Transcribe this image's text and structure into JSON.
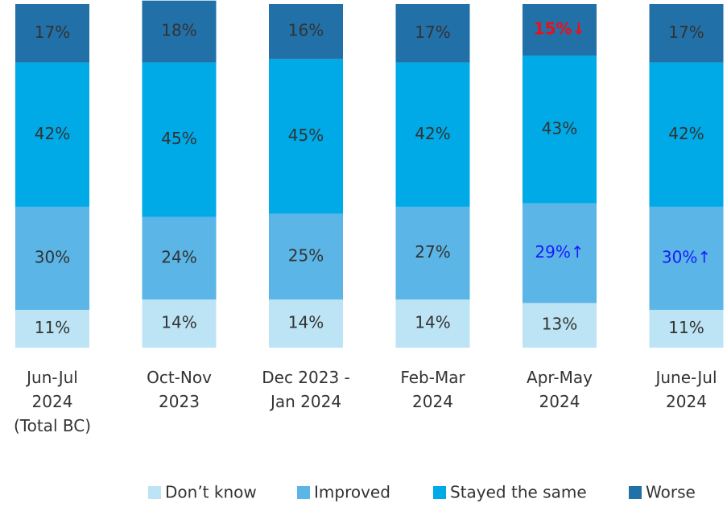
{
  "chart_data": {
    "type": "stacked_bar",
    "categories": [
      "Jun-Jul\n2024\n(Total BC)",
      "Oct-Nov\n2023",
      "Dec 2023 -\nJan 2024",
      "Feb-Mar\n2024",
      "Apr-May\n2024",
      "June-Jul\n2024"
    ],
    "series": [
      {
        "name": "Don’t know",
        "color": "#bde4f5",
        "values": [
          11,
          14,
          14,
          14,
          13,
          11
        ],
        "value_labels": [
          "11%",
          "14%",
          "14%",
          "14%",
          "13%",
          "11%"
        ]
      },
      {
        "name": "Improved",
        "color": "#5bb5e6",
        "values": [
          30,
          24,
          25,
          27,
          29,
          30
        ],
        "value_labels": [
          "30%",
          "24%",
          "25%",
          "27%",
          "29%↑",
          "30%↑"
        ]
      },
      {
        "name": "Stayed the same",
        "color": "#00aae7",
        "values": [
          42,
          45,
          45,
          42,
          43,
          42
        ],
        "value_labels": [
          "42%",
          "45%",
          "45%",
          "42%",
          "43%",
          "42%"
        ]
      },
      {
        "name": "Worse",
        "color": "#2270a8",
        "values": [
          17,
          18,
          16,
          17,
          15,
          17
        ],
        "value_labels": [
          "17%",
          "18%",
          "16%",
          "17%",
          "15%↓",
          "17%"
        ]
      }
    ],
    "highlights": [
      {
        "series": 3,
        "index": 4,
        "color": "#e8111b",
        "bold": true
      },
      {
        "series": 1,
        "index": 4,
        "color": "#1a1aff",
        "bold": false
      },
      {
        "series": 1,
        "index": 5,
        "color": "#1a1aff",
        "bold": false
      }
    ],
    "ylim": [
      0,
      100
    ],
    "legend": "bottom"
  }
}
